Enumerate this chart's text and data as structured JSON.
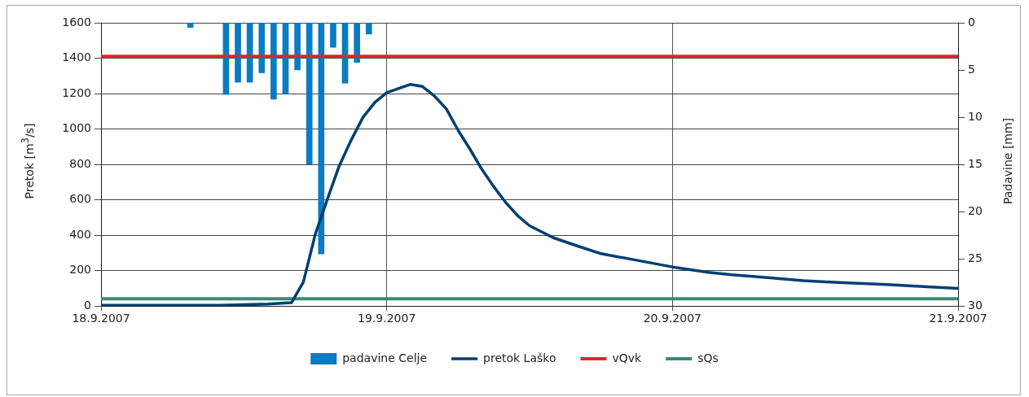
{
  "chart_data": {
    "type": "line",
    "ylabel": "Pretok [m$^{3}$/s]",
    "y2label": "Padavine [mm]",
    "xlim": [
      "2007-09-18",
      "2007-09-21"
    ],
    "xticks": [
      {
        "value": "2007-09-18",
        "label": "18.9.2007"
      },
      {
        "value": "2007-09-19",
        "label": "19.9.2007"
      },
      {
        "value": "2007-09-20",
        "label": "20.9.2007"
      },
      {
        "value": "2007-09-21",
        "label": "21.9.2007"
      }
    ],
    "ylim": [
      0,
      1600
    ],
    "yticks": [
      0,
      200,
      400,
      600,
      800,
      1000,
      1200,
      1400,
      1600
    ],
    "y2lim": [
      30,
      0
    ],
    "y2ticks": [
      0,
      5,
      10,
      15,
      20,
      25,
      30
    ],
    "grid": true,
    "legend": "bottom",
    "marker": "none",
    "line_style": "solid",
    "series": [
      {
        "name": "padavine Celje",
        "type": "bar",
        "axis": "y2",
        "color": "#0a7bc4",
        "x": [
          "2007-09-18T07:30",
          "2007-09-18T10:30",
          "2007-09-18T11:30",
          "2007-09-18T12:30",
          "2007-09-18T13:30",
          "2007-09-18T14:30",
          "2007-09-18T15:30",
          "2007-09-18T16:30",
          "2007-09-18T17:30",
          "2007-09-18T18:30",
          "2007-09-18T19:30",
          "2007-09-18T20:30",
          "2007-09-18T21:30",
          "2007-09-18T22:30"
        ],
        "values": [
          0.5,
          7.6,
          6.3,
          6.3,
          5.3,
          8.1,
          7.5,
          5.0,
          15.0,
          24.5,
          2.6,
          6.4,
          4.2,
          1.2
        ]
      },
      {
        "name": "pretok Laško",
        "color": "#003f72",
        "x": [
          "2007-09-18T00:00",
          "2007-09-18T10:00",
          "2007-09-18T14:00",
          "2007-09-18T16:00",
          "2007-09-18T17:00",
          "2007-09-18T18:00",
          "2007-09-18T19:00",
          "2007-09-18T20:00",
          "2007-09-18T21:00",
          "2007-09-18T22:00",
          "2007-09-18T23:00",
          "2007-09-19T00:00",
          "2007-09-19T02:00",
          "2007-09-19T03:00",
          "2007-09-19T04:00",
          "2007-09-19T05:00",
          "2007-09-19T06:00",
          "2007-09-19T07:00",
          "2007-09-19T08:00",
          "2007-09-19T09:00",
          "2007-09-19T10:00",
          "2007-09-19T11:00",
          "2007-09-19T12:00",
          "2007-09-19T14:00",
          "2007-09-19T16:00",
          "2007-09-19T18:00",
          "2007-09-19T21:00",
          "2007-09-20T00:00",
          "2007-09-20T03:00",
          "2007-09-20T05:00",
          "2007-09-20T08:00",
          "2007-09-20T11:00",
          "2007-09-20T14:00",
          "2007-09-20T18:00",
          "2007-09-20T22:00",
          "2007-09-21T00:00"
        ],
        "values": [
          3,
          3,
          10,
          18,
          135,
          405,
          600,
          790,
          935,
          1065,
          1150,
          1205,
          1252,
          1240,
          1187,
          1114,
          992,
          885,
          771,
          673,
          584,
          510,
          453,
          385,
          339,
          295,
          258,
          220,
          190,
          176,
          160,
          143,
          132,
          121,
          106,
          99
        ]
      },
      {
        "name": "vQvk",
        "type": "line",
        "color": "#e8222a",
        "x": [
          "2007-09-18",
          "2007-09-21"
        ],
        "values": [
          1410,
          1410
        ]
      },
      {
        "name": "sQs",
        "type": "line",
        "color": "#3a8a74",
        "x": [
          "2007-09-18",
          "2007-09-21"
        ],
        "values": [
          40,
          40
        ]
      }
    ]
  }
}
